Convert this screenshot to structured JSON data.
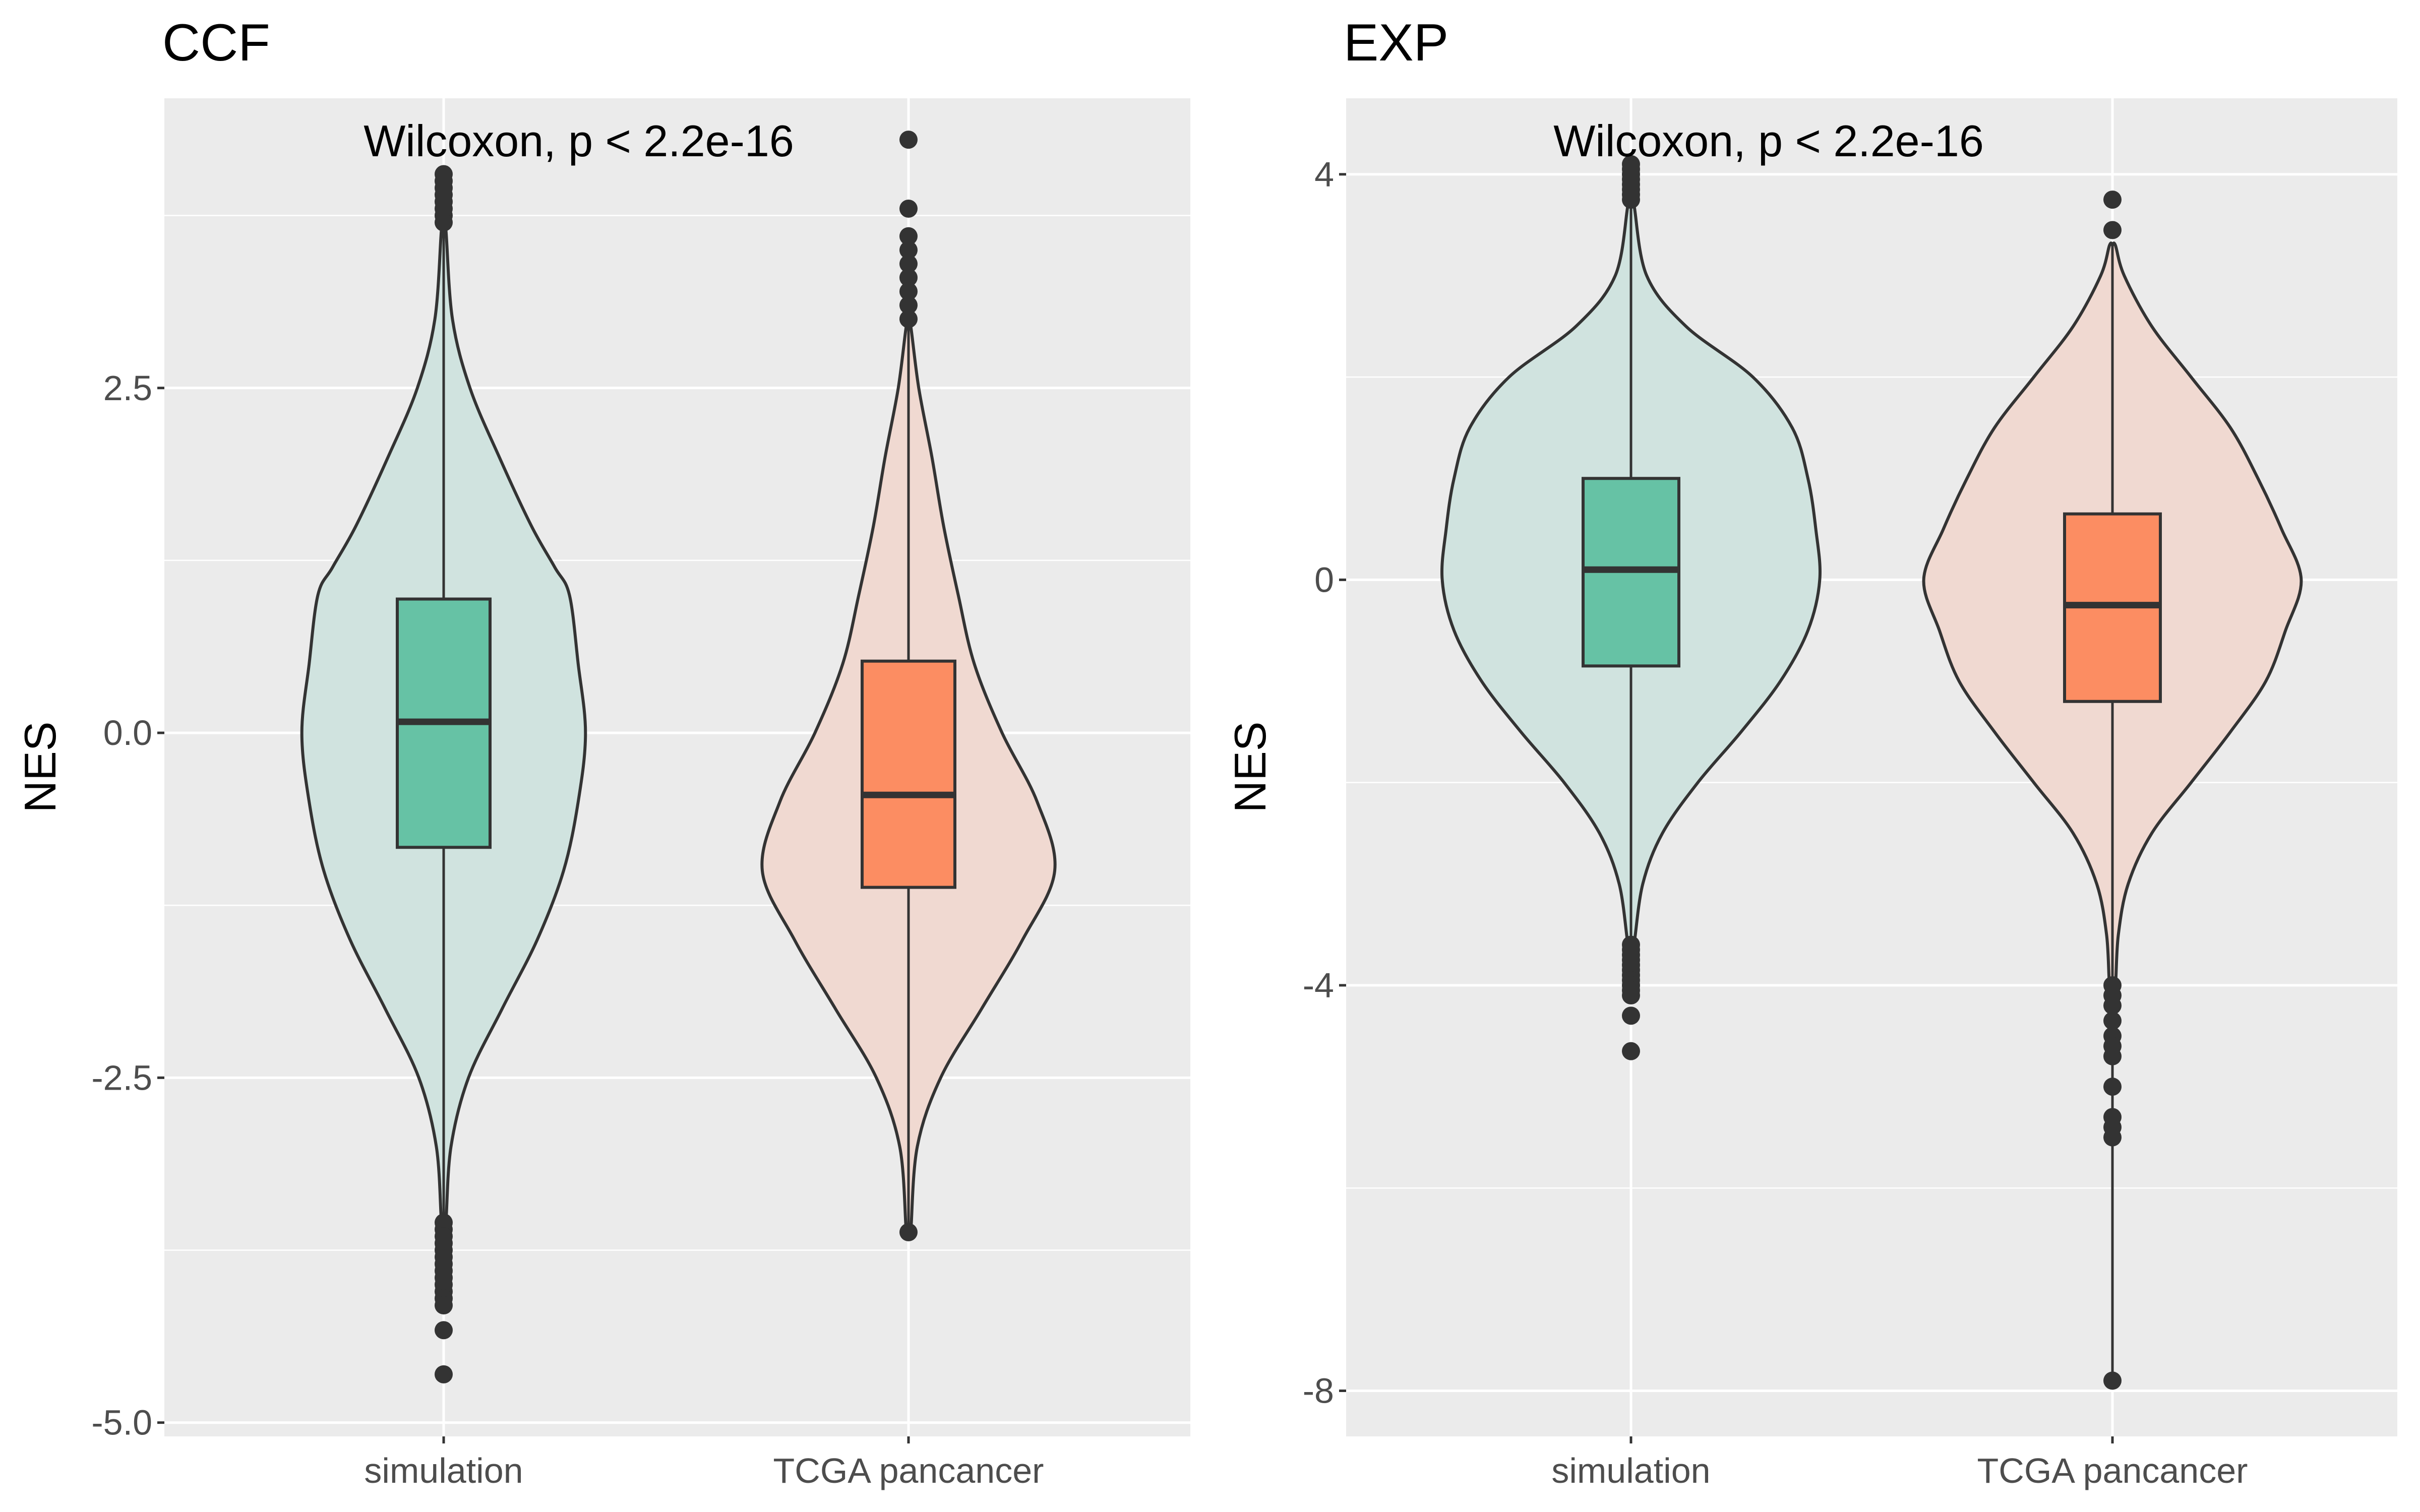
{
  "colors": {
    "simulation_box": "#66c2a5",
    "simulation_violin": "#d0e3df",
    "tcga_box": "#fc8d62",
    "tcga_violin": "#f0d9d1",
    "panel_background": "#ebebeb",
    "grid": "#ffffff",
    "ink": "#333333"
  },
  "chart_data": [
    {
      "type": "violin",
      "title": "CCF",
      "xlabel": "",
      "ylabel": "NES",
      "annotation": "Wilcoxon, p < 2.2e-16",
      "categories": [
        "simulation",
        "TCGA pancancer"
      ],
      "ylim": [
        -5.1,
        4.6
      ],
      "yticks": [
        2.5,
        0.0,
        -2.5,
        -5.0
      ],
      "ytick_labels": [
        "2.5",
        "0.0",
        "-2.5",
        "-5.0"
      ],
      "grid": true,
      "series": [
        {
          "name": "simulation",
          "box": {
            "q1": -0.83,
            "median": 0.08,
            "q3": 0.97,
            "whisker_low": -3.55,
            "whisker_high": 3.65
          },
          "outliers": [
            4.05,
            4.0,
            3.95,
            3.9,
            3.85,
            3.8,
            3.75,
            3.7,
            -3.55,
            -3.6,
            -3.65,
            -3.7,
            -3.75,
            -3.8,
            -3.85,
            -3.9,
            -3.95,
            -4.0,
            -4.05,
            -4.1,
            -4.15,
            -4.33,
            -4.65
          ],
          "violin": {
            "y": [
              3.65,
              3.0,
              2.5,
              2.0,
              1.5,
              1.2,
              1.0,
              0.5,
              0.0,
              -0.5,
              -1.0,
              -1.5,
              -2.0,
              -2.5,
              -3.0,
              -3.55
            ],
            "half_width": [
              0.015,
              0.06,
              0.18,
              0.38,
              0.6,
              0.76,
              0.86,
              0.92,
              0.97,
              0.92,
              0.82,
              0.64,
              0.4,
              0.17,
              0.05,
              0.015
            ]
          }
        },
        {
          "name": "TCGA pancancer",
          "box": {
            "q1": -1.12,
            "median": -0.45,
            "q3": 0.52,
            "whisker_low": -3.62,
            "whisker_high": 2.95
          },
          "outliers": [
            4.3,
            3.8,
            3.6,
            3.5,
            3.4,
            3.3,
            3.2,
            3.1,
            3.0,
            -3.62
          ],
          "violin": {
            "y": [
              2.95,
              2.5,
              2.0,
              1.5,
              1.0,
              0.5,
              0.0,
              -0.5,
              -1.0,
              -1.5,
              -2.0,
              -2.5,
              -3.0,
              -3.62
            ],
            "half_width": [
              0.015,
              0.07,
              0.16,
              0.24,
              0.34,
              0.45,
              0.64,
              0.88,
              1.0,
              0.78,
              0.5,
              0.22,
              0.06,
              0.015
            ]
          }
        }
      ]
    },
    {
      "type": "violin",
      "title": "EXP",
      "xlabel": "",
      "ylabel": "NES",
      "annotation": "Wilcoxon, p < 2.2e-16",
      "categories": [
        "simulation",
        "TCGA pancancer"
      ],
      "ylim": [
        -8.45,
        4.75
      ],
      "yticks": [
        4,
        0,
        -4,
        -8
      ],
      "ytick_labels": [
        "4",
        "0",
        "-4",
        "-8"
      ],
      "grid": true,
      "series": [
        {
          "name": "simulation",
          "box": {
            "q1": -0.85,
            "median": 0.1,
            "q3": 1.0,
            "whisker_low": -3.6,
            "whisker_high": 3.7
          },
          "outliers": [
            4.1,
            4.05,
            4.0,
            3.95,
            3.9,
            3.85,
            3.8,
            3.75,
            -3.6,
            -3.65,
            -3.7,
            -3.75,
            -3.8,
            -3.85,
            -3.9,
            -3.95,
            -4.0,
            -4.05,
            -4.1,
            -4.3,
            -4.65
          ],
          "violin": {
            "y": [
              3.7,
              3.0,
              2.5,
              2.0,
              1.5,
              1.0,
              0.5,
              0.0,
              -0.5,
              -1.0,
              -1.5,
              -2.0,
              -2.5,
              -3.0,
              -3.6
            ],
            "half_width": [
              0.015,
              0.08,
              0.28,
              0.62,
              0.82,
              0.9,
              0.94,
              0.96,
              0.9,
              0.76,
              0.56,
              0.34,
              0.16,
              0.06,
              0.015
            ]
          }
        },
        {
          "name": "TCGA pancancer",
          "box": {
            "q1": -1.2,
            "median": -0.25,
            "q3": 0.65,
            "whisker_low": -7.9,
            "whisker_high": 3.3
          },
          "outliers": [
            3.75,
            3.45,
            -4.0,
            -4.1,
            -4.2,
            -4.35,
            -4.5,
            -4.6,
            -4.7,
            -5.0,
            -5.3,
            -5.4,
            -5.5,
            -7.9
          ],
          "violin": {
            "y": [
              3.3,
              3.0,
              2.5,
              2.0,
              1.5,
              1.0,
              0.5,
              0.0,
              -0.5,
              -1.0,
              -1.5,
              -2.0,
              -2.5,
              -3.0,
              -3.5,
              -4.0
            ],
            "half_width": [
              0.015,
              0.06,
              0.2,
              0.4,
              0.6,
              0.74,
              0.86,
              0.96,
              0.88,
              0.78,
              0.6,
              0.4,
              0.2,
              0.08,
              0.03,
              0.015
            ]
          }
        }
      ]
    }
  ]
}
